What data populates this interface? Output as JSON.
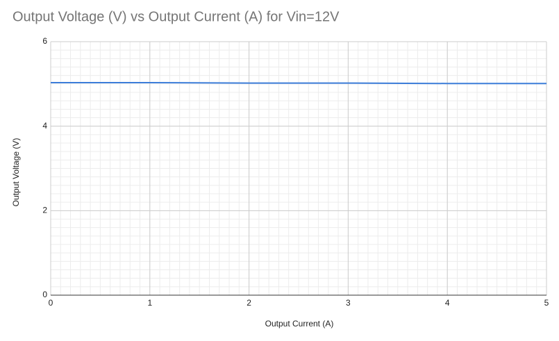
{
  "chart_data": {
    "type": "line",
    "title": "Output Voltage (V) vs Output Current (A) for Vin=12V",
    "x_label": "Output Current (A)",
    "y_label": "Output Voltage (V)",
    "x": [
      0,
      1,
      2,
      3,
      4,
      5
    ],
    "series": [
      {
        "name": "Output Voltage (V)",
        "color": "#3c7dd9",
        "values": [
          5.03,
          5.03,
          5.02,
          5.02,
          5.01,
          5.01
        ]
      }
    ],
    "xlim": [
      0,
      5
    ],
    "xticks": [
      0,
      1,
      2,
      3,
      4,
      5
    ],
    "ylim": [
      0,
      6
    ],
    "yticks": [
      0,
      2,
      4,
      6
    ],
    "grid": true,
    "minor_grid": true
  }
}
